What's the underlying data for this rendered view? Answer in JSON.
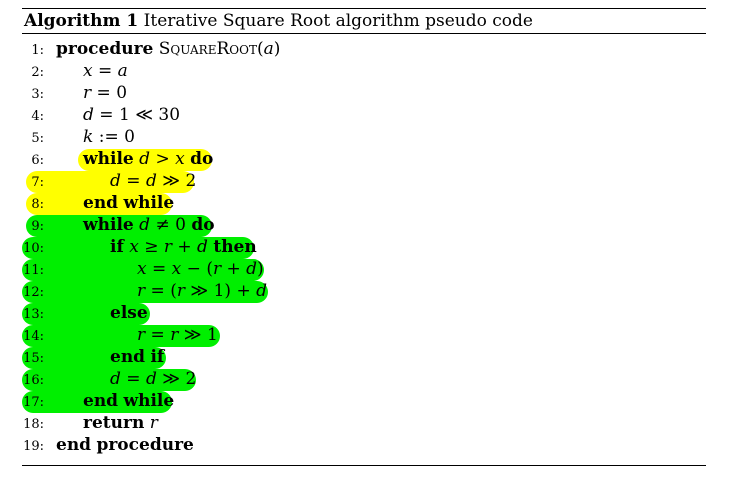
{
  "caption": {
    "label": "Algorithm 1",
    "text": "Iterative Square Root algorithm pseudo code"
  },
  "colors": {
    "yellow_highlight": "#ffff00",
    "green_highlight": "#00ef00"
  },
  "lines": [
    {
      "num": "1:",
      "text": "procedure SquareRoot(a)"
    },
    {
      "num": "2:",
      "text": "x = a"
    },
    {
      "num": "3:",
      "text": "r = 0"
    },
    {
      "num": "4:",
      "text": "d = 1 ≪ 30"
    },
    {
      "num": "5:",
      "text": "k := 0"
    },
    {
      "num": "6:",
      "text": "while d > x do",
      "highlight": "yellow"
    },
    {
      "num": "7:",
      "text": "d = d ≫ 2",
      "highlight": "yellow"
    },
    {
      "num": "8:",
      "text": "end while",
      "highlight": "yellow"
    },
    {
      "num": "9:",
      "text": "while d ≠ 0 do",
      "highlight": "green"
    },
    {
      "num": "10:",
      "text": "if x ≥ r + d then",
      "highlight": "green"
    },
    {
      "num": "11:",
      "text": "x = x − (r + d)",
      "highlight": "green"
    },
    {
      "num": "12:",
      "text": "r = (r ≫ 1) + d",
      "highlight": "green"
    },
    {
      "num": "13:",
      "text": "else",
      "highlight": "green"
    },
    {
      "num": "14:",
      "text": "r = r ≫ 1",
      "highlight": "green"
    },
    {
      "num": "15:",
      "text": "end if",
      "highlight": "green"
    },
    {
      "num": "16:",
      "text": "d = d ≫ 2",
      "highlight": "green"
    },
    {
      "num": "17:",
      "text": "end while",
      "highlight": "green"
    },
    {
      "num": "18:",
      "text": "return r"
    },
    {
      "num": "19:",
      "text": "end procedure"
    }
  ]
}
